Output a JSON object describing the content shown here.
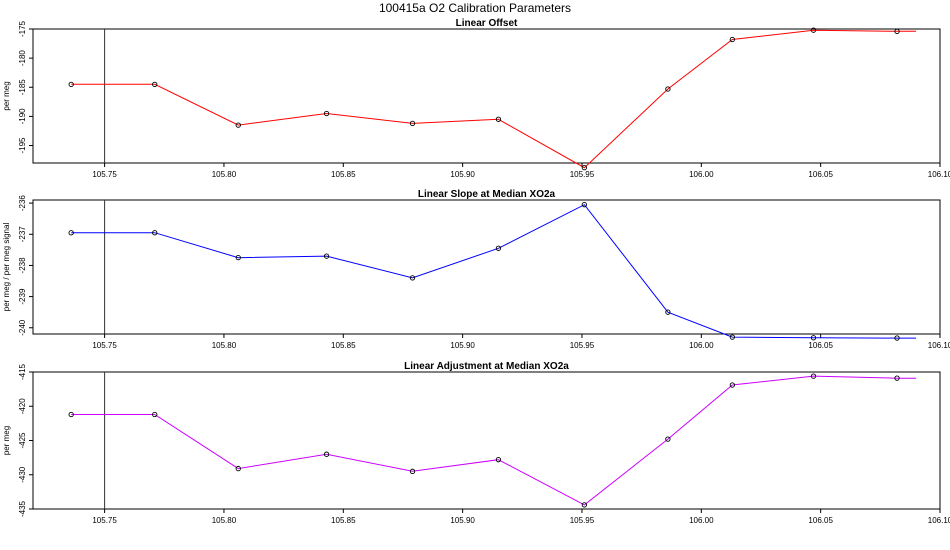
{
  "page": {
    "title": "100415a   O2 Calibration Parameters"
  },
  "chart_data": [
    {
      "type": "line",
      "title": "Linear Offset",
      "xlabel": "",
      "ylabel": "per meg",
      "xlim": [
        105.72,
        106.1
      ],
      "ylim": [
        -198,
        -175
      ],
      "xticks": [
        105.75,
        105.8,
        105.85,
        105.9,
        105.95,
        106.0,
        106.05,
        106.1
      ],
      "xtick_labels": [
        "105.75",
        "105.80",
        "105.85",
        "105.90",
        "105.95",
        "106.00",
        "106.05",
        "106.10"
      ],
      "yticks": [
        -195,
        -190,
        -185,
        -180,
        -175
      ],
      "ytick_labels": [
        "-195",
        "-190",
        "-185",
        "-180",
        "-175"
      ],
      "vline": 105.75,
      "color": "#ff0000",
      "series": [
        {
          "x": [
            105.736,
            105.771,
            105.806,
            105.843,
            105.879,
            105.915,
            105.951,
            105.986,
            106.013,
            106.047,
            106.082
          ],
          "y": [
            -184.5,
            -184.5,
            -191.5,
            -189.5,
            -191.2,
            -190.5,
            -198.8,
            -185.3,
            -176.8,
            -175.2,
            -175.4
          ]
        }
      ],
      "line_end_x": 106.09
    },
    {
      "type": "line",
      "title": "Linear Slope at Median XO2a",
      "xlabel": "",
      "ylabel": "per meg / per meg signal",
      "xlim": [
        105.72,
        106.1
      ],
      "ylim": [
        -240.2,
        -235.9
      ],
      "xticks": [
        105.75,
        105.8,
        105.85,
        105.9,
        105.95,
        106.0,
        106.05,
        106.1
      ],
      "xtick_labels": [
        "105.75",
        "105.80",
        "105.85",
        "105.90",
        "105.95",
        "106.00",
        "106.05",
        "106.10"
      ],
      "yticks": [
        -240,
        -239,
        -238,
        -237,
        -236
      ],
      "ytick_labels": [
        "-240",
        "-239",
        "-238",
        "-237",
        "-236"
      ],
      "vline": 105.75,
      "color": "#0000ff",
      "series": [
        {
          "x": [
            105.736,
            105.771,
            105.806,
            105.843,
            105.879,
            105.915,
            105.951,
            105.986,
            106.013,
            106.047,
            106.082
          ],
          "y": [
            -236.95,
            -236.95,
            -237.75,
            -237.7,
            -238.4,
            -237.45,
            -236.05,
            -239.5,
            -240.3,
            -240.32,
            -240.33
          ]
        }
      ],
      "line_end_x": 106.09
    },
    {
      "type": "line",
      "title": "Linear Adjustment at Median XO2a",
      "xlabel": "",
      "ylabel": "per meg",
      "xlim": [
        105.72,
        106.1
      ],
      "ylim": [
        -435,
        -415
      ],
      "xticks": [
        105.75,
        105.8,
        105.85,
        105.9,
        105.95,
        106.0,
        106.05,
        106.1
      ],
      "xtick_labels": [
        "105.75",
        "105.80",
        "105.85",
        "105.90",
        "105.95",
        "106.00",
        "106.05",
        "106.10"
      ],
      "yticks": [
        -435,
        -430,
        -425,
        -420,
        -415
      ],
      "ytick_labels": [
        "-435",
        "-430",
        "-425",
        "-420",
        "-415"
      ],
      "vline": 105.75,
      "color": "#cc00ff",
      "series": [
        {
          "x": [
            105.736,
            105.771,
            105.806,
            105.843,
            105.879,
            105.915,
            105.951,
            105.986,
            106.013,
            106.047,
            106.082
          ],
          "y": [
            -421.2,
            -421.2,
            -429.1,
            -427.0,
            -429.5,
            -427.8,
            -434.4,
            -424.8,
            -416.9,
            -415.6,
            -415.9
          ]
        }
      ],
      "line_end_x": 106.09
    }
  ]
}
